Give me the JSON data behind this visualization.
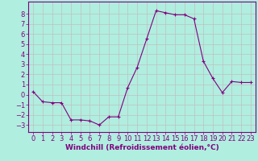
{
  "x": [
    0,
    1,
    2,
    3,
    4,
    5,
    6,
    7,
    8,
    9,
    10,
    11,
    12,
    13,
    14,
    15,
    16,
    17,
    18,
    19,
    20,
    21,
    22,
    23
  ],
  "y": [
    0.3,
    -0.7,
    -0.8,
    -0.8,
    -2.5,
    -2.5,
    -2.6,
    -3.0,
    -2.2,
    -2.2,
    0.7,
    2.7,
    5.5,
    8.3,
    8.1,
    7.9,
    7.9,
    7.5,
    3.3,
    1.6,
    0.2,
    1.3,
    1.2,
    1.2
  ],
  "line_color": "#800080",
  "marker": "+",
  "marker_size": 3,
  "xlabel": "Windchill (Refroidissement éolien,°C)",
  "xlim": [
    -0.5,
    23.5
  ],
  "ylim": [
    -3.7,
    9.2
  ],
  "yticks": [
    -3,
    -2,
    -1,
    0,
    1,
    2,
    3,
    4,
    5,
    6,
    7,
    8
  ],
  "xticks": [
    0,
    1,
    2,
    3,
    4,
    5,
    6,
    7,
    8,
    9,
    10,
    11,
    12,
    13,
    14,
    15,
    16,
    17,
    18,
    19,
    20,
    21,
    22,
    23
  ],
  "bg_color": "#b0eedf",
  "grid_color": "#c0c0c0",
  "label_color": "#800080",
  "font_size_xlabel": 6.5,
  "font_size_ticks": 6
}
